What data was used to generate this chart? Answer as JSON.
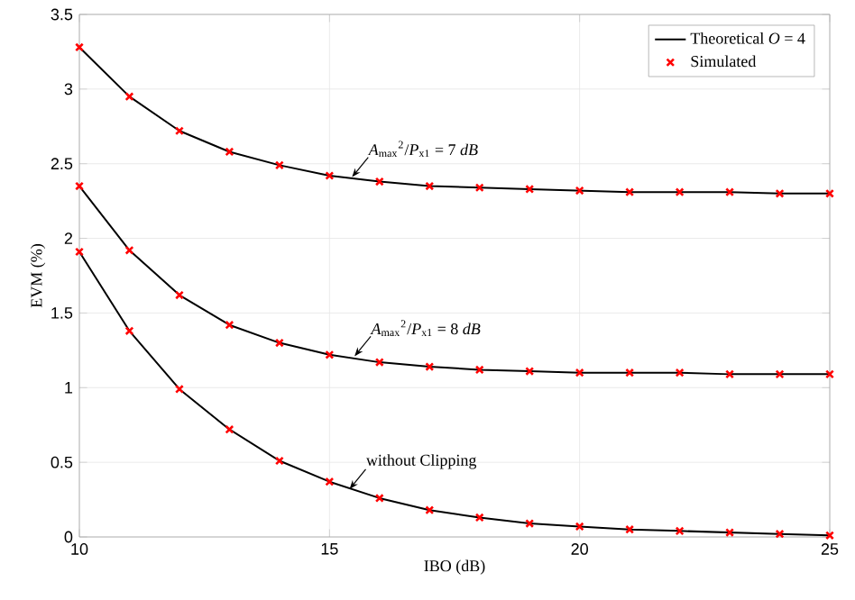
{
  "chart_data": {
    "type": "line",
    "xlabel": "IBO (dB)",
    "ylabel": "EVM (%)",
    "x": [
      10,
      11,
      12,
      13,
      14,
      15,
      16,
      17,
      18,
      19,
      20,
      21,
      22,
      23,
      24,
      25
    ],
    "series": [
      {
        "name": "Theoretical *O* = 4",
        "color": "#000000",
        "values": [
          3.28,
          2.95,
          2.72,
          2.58,
          2.49,
          2.42,
          2.38,
          2.35,
          2.34,
          2.33,
          2.32,
          2.31,
          2.31,
          2.31,
          2.3,
          2.3
        ]
      },
      {
        "color": "#000000",
        "values": [
          2.35,
          1.92,
          1.62,
          1.42,
          1.3,
          1.22,
          1.17,
          1.14,
          1.12,
          1.11,
          1.1,
          1.1,
          1.1,
          1.09,
          1.09,
          1.09
        ]
      },
      {
        "color": "#000000",
        "values": [
          1.91,
          1.38,
          0.99,
          0.72,
          0.51,
          0.37,
          0.26,
          0.18,
          0.13,
          0.09,
          0.07,
          0.05,
          0.04,
          0.03,
          0.02,
          0.01
        ]
      },
      {
        "name": "Simulated",
        "type": "scatter",
        "marker": "cross",
        "color": "#ff0000",
        "values": [
          3.28,
          2.95,
          2.72,
          2.58,
          2.49,
          2.42,
          2.38,
          2.35,
          2.34,
          2.33,
          2.32,
          2.31,
          2.31,
          2.31,
          2.3,
          2.3
        ]
      },
      {
        "type": "scatter",
        "marker": "cross",
        "color": "#ff0000",
        "values": [
          2.35,
          1.92,
          1.62,
          1.42,
          1.3,
          1.22,
          1.17,
          1.14,
          1.12,
          1.11,
          1.1,
          1.1,
          1.1,
          1.09,
          1.09,
          1.09
        ]
      },
      {
        "type": "scatter",
        "marker": "cross",
        "color": "#ff0000",
        "values": [
          1.91,
          1.38,
          0.99,
          0.72,
          0.51,
          0.37,
          0.26,
          0.18,
          0.13,
          0.09,
          0.07,
          0.05,
          0.04,
          0.03,
          0.02,
          0.01
        ]
      }
    ],
    "xlim": [
      10,
      25
    ],
    "ylim": [
      0,
      3.5
    ],
    "xticks": [
      10,
      15,
      20,
      25
    ],
    "yticks": [
      0,
      0.5,
      1,
      1.5,
      2,
      2.5,
      3,
      3.5
    ],
    "grid": true,
    "legend": "top right",
    "annotations": [
      {
        "text": "*A*$_{max}$$^{2}$/*P*$_{x1}$ = 7 *dB*",
        "x": 15.45,
        "y": 2.41
      },
      {
        "text": "*A*$_{max}$$^{2}$/*P*$_{x1}$ = 8 *dB*",
        "x": 15.5,
        "y": 1.21
      },
      {
        "text": "without Clipping",
        "x": 15.4,
        "y": 0.32
      }
    ]
  }
}
